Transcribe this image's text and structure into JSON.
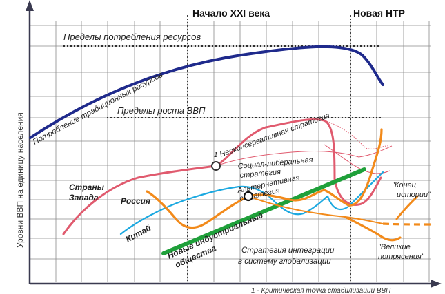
{
  "markers": {
    "century": "Начало XXI века",
    "ntr": "Новая НТР"
  },
  "axes": {
    "y": "Уровни ВВП на единицу населения"
  },
  "limits": {
    "resources": "Пределы потребления ресурсов",
    "gdp": "Пределы роста ВВП"
  },
  "curves": {
    "traditional": "Потребление традиционных ресурсов",
    "neocons": "Неоконсервативная стратегия",
    "soclib_1": "Социал-либеральная",
    "soclib_2": "стратегия",
    "alt_1": "Альтернативная",
    "alt_2": "стратегия",
    "west_1": "Страны",
    "west_2": "Запада",
    "russia": "Россия",
    "china": "Китай",
    "nis_1": "Новые индустриальные",
    "nis_2": "общества",
    "integration_1": "Стратегия интеграции",
    "integration_2": "в систему глобализации",
    "history_end_1": "\"Конец",
    "history_end_2": "истории\"",
    "great_1": "\"Великие",
    "great_2": "потрясения\""
  },
  "point_label": "1",
  "footnote": "1 - Критическая точка стабилизации ВВП",
  "colors": {
    "traditional": "#1f2a8c",
    "west": "#e05a6e",
    "russia": "#f28a1a",
    "china": "#1aa8e0",
    "nis": "#1fa03a",
    "axis": "#3a3a50",
    "background": "#ffffff",
    "grid": "#888888"
  }
}
